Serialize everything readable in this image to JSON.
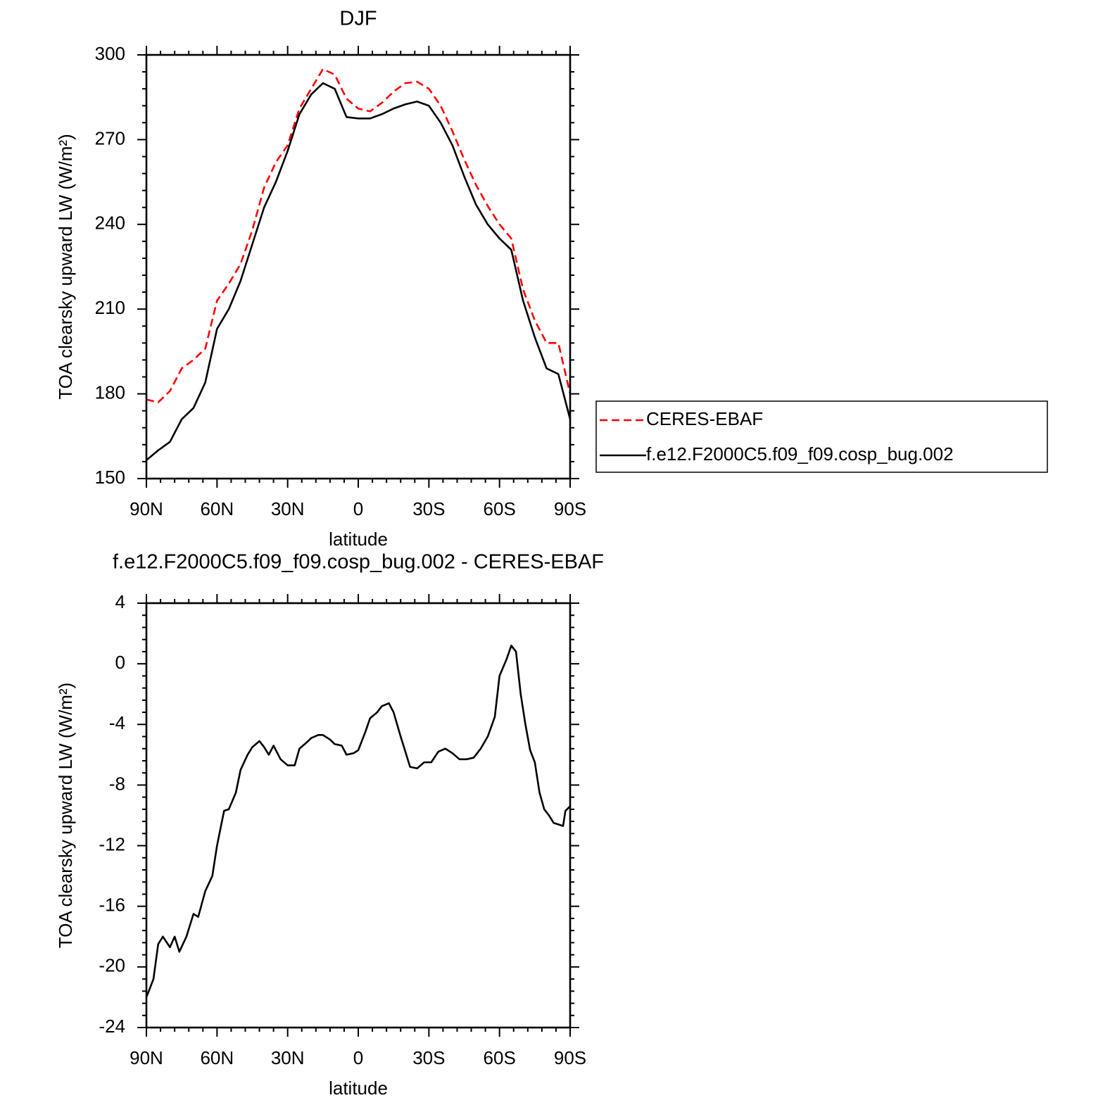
{
  "chart_data": [
    {
      "type": "line",
      "title": "DJF",
      "xlabel": "latitude",
      "ylabel": "TOA clearsky upward LW (W/m²)",
      "x": [
        90,
        85,
        80,
        75,
        70,
        65,
        60,
        55,
        50,
        45,
        40,
        35,
        30,
        25,
        20,
        15,
        10,
        5,
        0,
        -5,
        -10,
        -15,
        -20,
        -25,
        -30,
        -35,
        -40,
        -45,
        -50,
        -55,
        -60,
        -65,
        -70,
        -75,
        -80,
        -85,
        -90
      ],
      "series": [
        {
          "name": "CERES-EBAF",
          "color": "#ff0000",
          "linestyle": "dashed",
          "values": [
            178,
            177,
            181,
            189,
            192,
            196,
            213,
            219,
            226,
            238,
            253,
            262,
            268,
            281,
            288,
            295,
            293,
            284.5,
            281,
            280,
            283,
            287,
            290,
            290.5,
            288,
            282,
            273,
            263,
            254,
            246.5,
            240,
            235,
            217,
            206,
            198,
            198,
            180
          ]
        },
        {
          "name": "f.e12.F2000C5.f09_f09.cosp_bug.002",
          "color": "#000000",
          "linestyle": "solid",
          "values": [
            156.5,
            160,
            163,
            171,
            175,
            184,
            203,
            210,
            220,
            233,
            246,
            255,
            266,
            279,
            286,
            290,
            288,
            278,
            277.5,
            277.5,
            279,
            281,
            282.5,
            283.5,
            282,
            276,
            268,
            257,
            247,
            240,
            235,
            231,
            213,
            200,
            189,
            187,
            171
          ]
        }
      ],
      "xlim": [
        90,
        -90
      ],
      "xticks": [
        {
          "value": 90,
          "label": "90N"
        },
        {
          "value": 60,
          "label": "60N"
        },
        {
          "value": 30,
          "label": "30N"
        },
        0,
        {
          "value": -30,
          "label": "30S"
        },
        {
          "value": -60,
          "label": "60S"
        },
        {
          "value": -90,
          "label": "90S"
        }
      ],
      "ylim": [
        150,
        300
      ],
      "yticks": [
        150,
        180,
        210,
        240,
        270,
        300
      ],
      "legend": "right"
    },
    {
      "type": "line",
      "title": "f.e12.F2000C5.f09_f09.cosp_bug.002 - CERES-EBAF",
      "xlabel": "latitude",
      "ylabel": "TOA clearsky upward LW (W/m²)",
      "x": [
        90,
        87,
        85,
        83,
        80,
        78,
        76,
        73,
        70,
        68,
        65,
        62,
        60,
        57,
        55,
        52,
        50,
        47,
        45,
        42,
        40,
        38,
        36,
        33,
        30,
        27,
        25,
        22,
        20,
        17,
        15,
        12,
        10,
        7,
        5,
        2,
        0,
        -3,
        -5,
        -8,
        -10,
        -13,
        -15,
        -18,
        -20,
        -22,
        -25,
        -28,
        -31,
        -34,
        -37,
        -40,
        -43,
        -46,
        -49,
        -52,
        -55,
        -58,
        -60,
        -63,
        -65,
        -67,
        -69,
        -71,
        -73,
        -75,
        -77,
        -79,
        -81,
        -83,
        -85,
        -87,
        -88,
        -90
      ],
      "series": [
        {
          "name": "f.e12.F2000C5.f09_f09.cosp_bug.002 - CERES-EBAF",
          "color": "#000000",
          "linestyle": "solid",
          "values": [
            -22,
            -20.8,
            -18.5,
            -18,
            -18.7,
            -18,
            -19,
            -18,
            -16.5,
            -16.7,
            -15,
            -14,
            -12,
            -9.7,
            -9.6,
            -8.5,
            -7,
            -6,
            -5.5,
            -5.1,
            -5.5,
            -6,
            -5.4,
            -6.3,
            -6.7,
            -6.7,
            -5.6,
            -5.2,
            -4.9,
            -4.7,
            -4.7,
            -5,
            -5.3,
            -5.4,
            -6,
            -5.9,
            -5.7,
            -4.5,
            -3.6,
            -3.2,
            -2.8,
            -2.6,
            -3.2,
            -4.8,
            -5.8,
            -6.8,
            -6.9,
            -6.5,
            -6.5,
            -5.8,
            -5.6,
            -5.9,
            -6.3,
            -6.3,
            -6.2,
            -5.6,
            -4.8,
            -3.5,
            -0.8,
            0.3,
            1.2,
            0.8,
            -2,
            -4,
            -5.7,
            -6.5,
            -8.5,
            -9.6,
            -10,
            -10.5,
            -10.6,
            -10.7,
            -9.7,
            -9.4
          ]
        }
      ],
      "xlim": [
        90,
        -90
      ],
      "xticks": [
        {
          "value": 90,
          "label": "90N"
        },
        {
          "value": 60,
          "label": "60N"
        },
        {
          "value": 30,
          "label": "30N"
        },
        0,
        {
          "value": -30,
          "label": "30S"
        },
        {
          "value": -60,
          "label": "60S"
        },
        {
          "value": -90,
          "label": "90S"
        }
      ],
      "ylim": [
        -24,
        4
      ],
      "yticks": [
        -24,
        -20,
        -16,
        -12,
        -8,
        -4,
        0,
        4
      ]
    }
  ]
}
